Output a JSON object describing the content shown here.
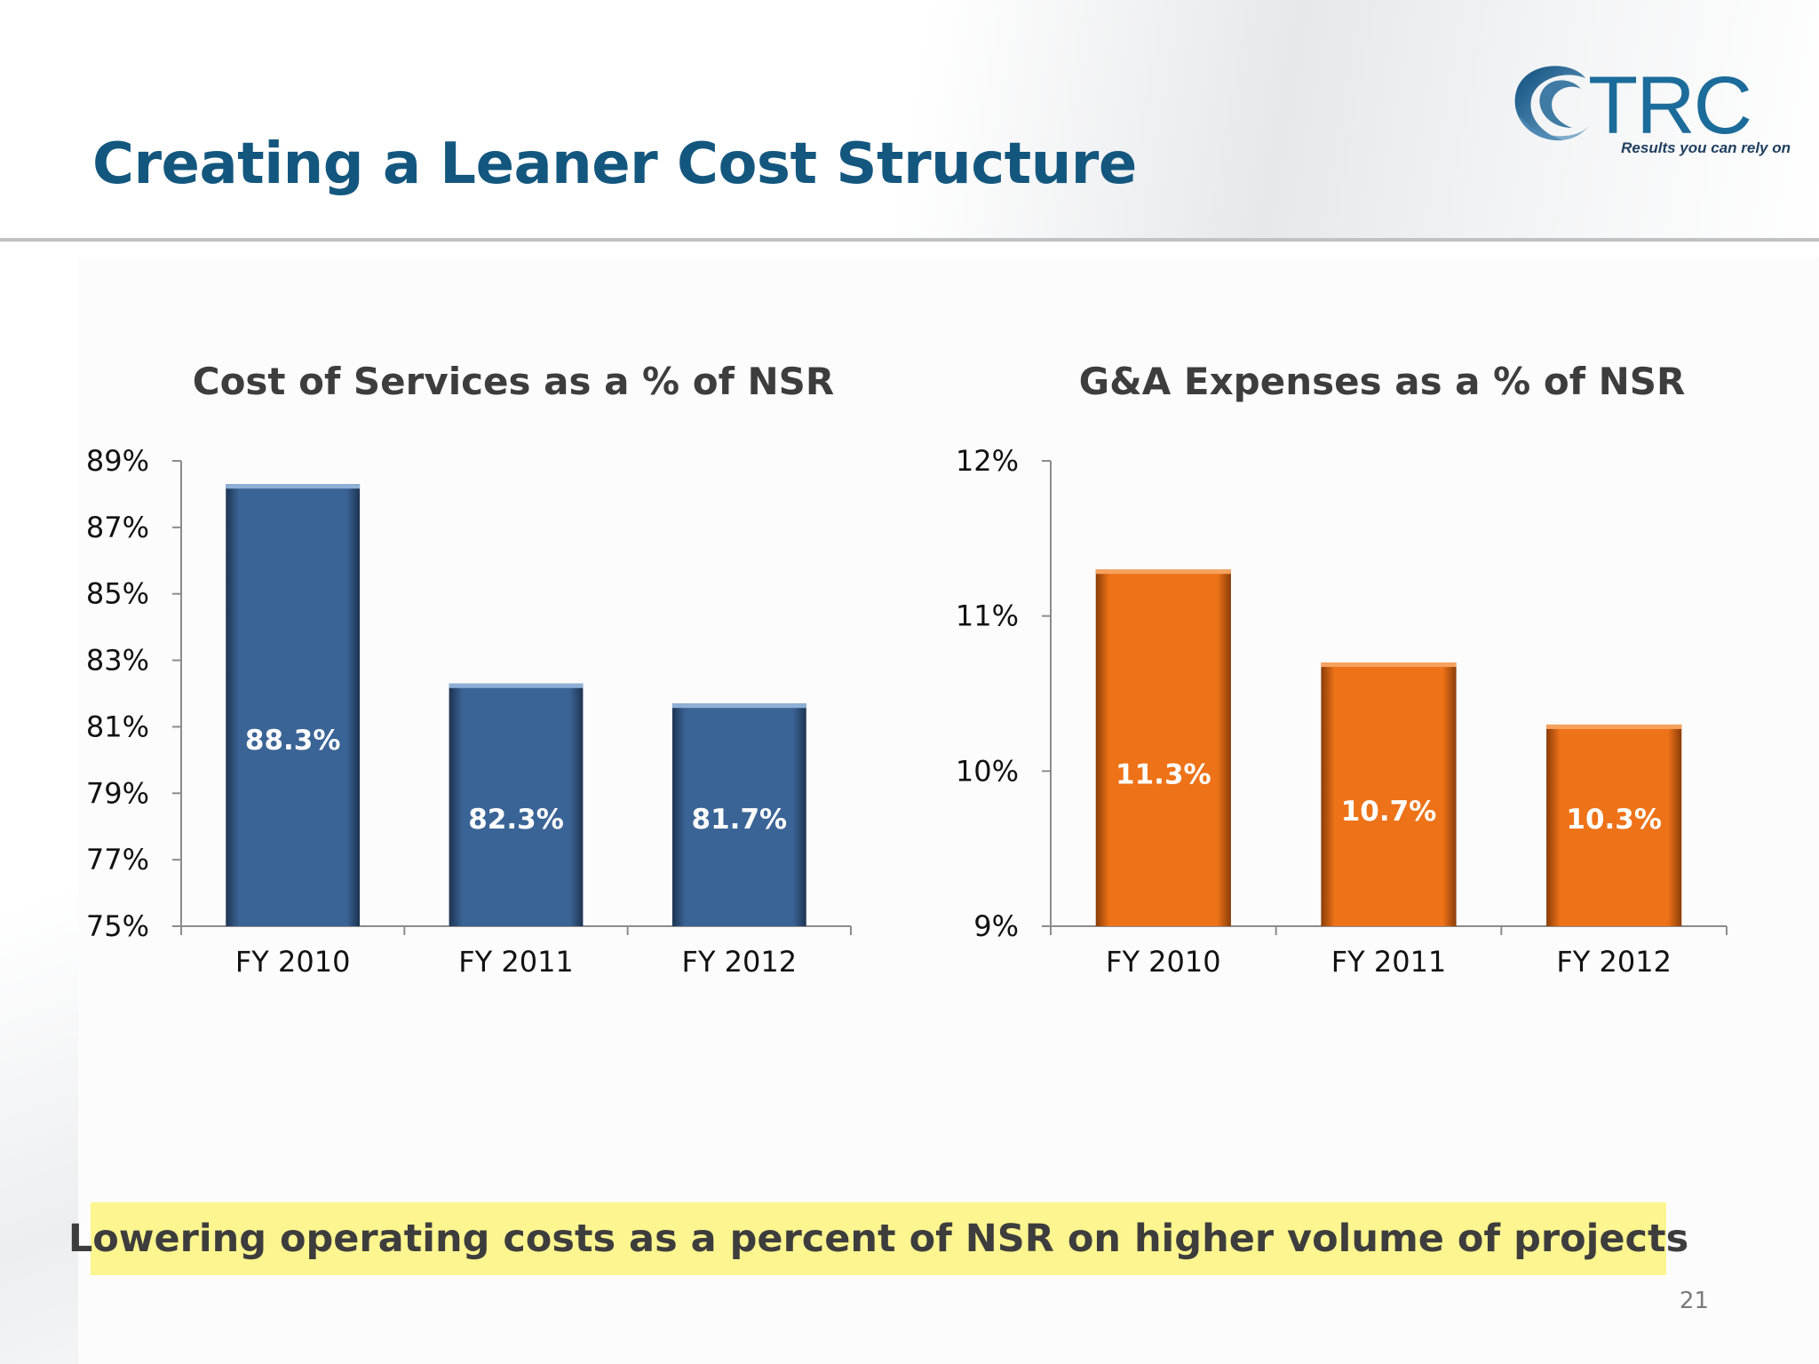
{
  "slide": {
    "title": "Creating a Leaner Cost Structure",
    "callout": "Lowering operating costs as a percent of NSR on higher volume of projects",
    "page_number": "21"
  },
  "logo": {
    "wordmark": "TRC",
    "tagline": "Results you can rely on",
    "colors": {
      "wordmark": "#1b6c9a",
      "swirl": "#2f79a8"
    }
  },
  "colors": {
    "title": "#13577f",
    "callout_bg": "#fdf58f",
    "bar_blue": "#3b6496",
    "bar_orange": "#ee7218"
  },
  "chart_data": [
    {
      "type": "bar",
      "title": "Cost of Services as a % of NSR",
      "categories": [
        "FY 2010",
        "FY 2011",
        "FY 2012"
      ],
      "values": [
        88.3,
        82.3,
        81.7
      ],
      "data_labels": [
        "88.3%",
        "82.3%",
        "81.7%"
      ],
      "ylim": [
        75,
        89
      ],
      "yticks": [
        75,
        77,
        79,
        81,
        83,
        85,
        87,
        89
      ],
      "ytick_labels": [
        "75%",
        "77%",
        "79%",
        "81%",
        "83%",
        "85%",
        "87%",
        "89%"
      ],
      "color": "#3b6496",
      "grid": false,
      "legend": "none"
    },
    {
      "type": "bar",
      "title": "G&A Expenses as a % of NSR",
      "categories": [
        "FY 2010",
        "FY 2011",
        "FY 2012"
      ],
      "values": [
        11.3,
        10.7,
        10.3
      ],
      "data_labels": [
        "11.3%",
        "10.7%",
        "10.3%"
      ],
      "ylim": [
        9,
        12
      ],
      "yticks": [
        9,
        10,
        11,
        12
      ],
      "ytick_labels": [
        "9%",
        "10%",
        "11%",
        "12%"
      ],
      "color": "#ee7218",
      "grid": false,
      "legend": "none"
    }
  ]
}
